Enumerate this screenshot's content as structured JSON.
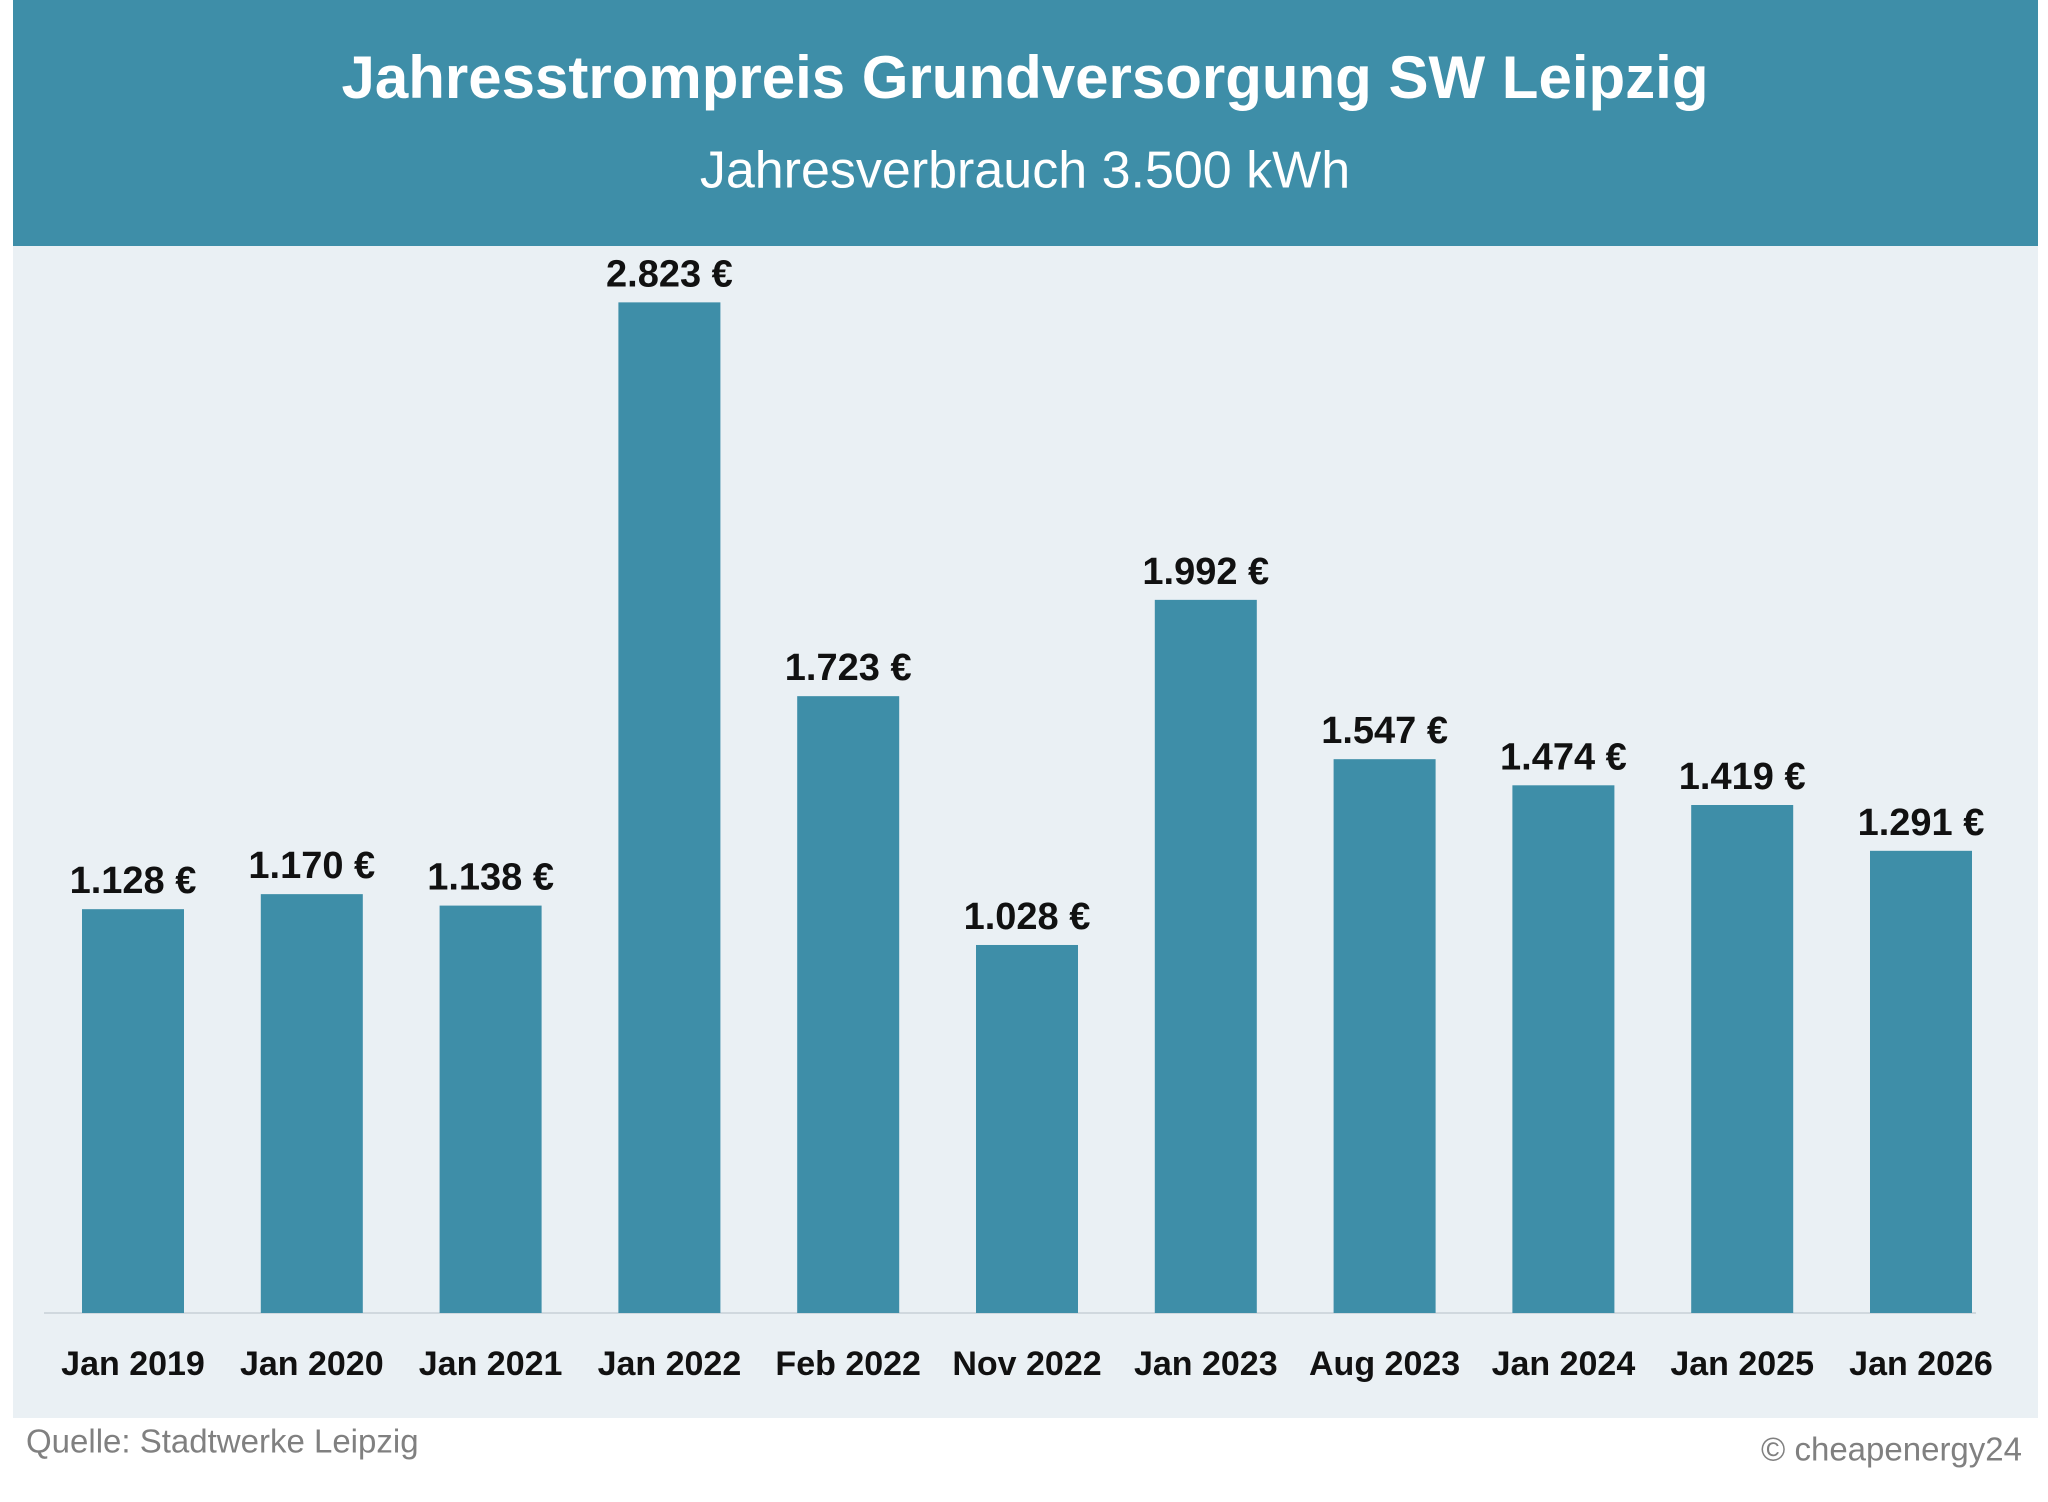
{
  "chart_data": {
    "type": "bar",
    "title": "Jahresstrompreis Grundversorgung SW Leipzig",
    "subtitle": "Jahresverbrauch 3.500 kWh",
    "categories": [
      "Jan 2019",
      "Jan 2020",
      "Jan 2021",
      "Jan 2022",
      "Feb 2022",
      "Nov 2022",
      "Jan 2023",
      "Aug 2023",
      "Jan 2024",
      "Jan 2025",
      "Jan 2026"
    ],
    "values": [
      1128,
      1170,
      1138,
      2823,
      1723,
      1028,
      1992,
      1547,
      1474,
      1419,
      1291
    ],
    "value_labels": [
      "1.128 €",
      "1.170 €",
      "1.138 €",
      "2.823 €",
      "1.723 €",
      "1.028 €",
      "1.992 €",
      "1.547 €",
      "1.474 €",
      "1.419 €",
      "1.291 €"
    ],
    "color": "#3e8ea8",
    "ylim": [
      0,
      3000
    ],
    "source": "Quelle: Stadtwerke Leipzig",
    "credit": "© cheapenergy24"
  }
}
